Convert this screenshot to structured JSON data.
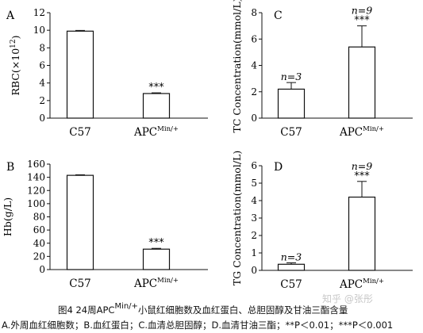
{
  "caption": {
    "line1_prefix": "图4  24周APC",
    "line1_sup": "Min/+",
    "line1_suffix": "小鼠红细胞数及血红蛋白、总胆固醇及甘油三酯含量",
    "line2": "A.外周血红细胞数；B.血红蛋白；C.血清总胆固醇；D.血清甘油三酯；**P＜0.01；***P＜0.001"
  },
  "watermark": "知乎 @张彤",
  "chart_data": [
    {
      "panel": "A",
      "type": "bar",
      "ylabel": "RBC(×10",
      "ylabel_sup": "12",
      "ylabel_suffix": ")",
      "ylim": [
        0,
        12
      ],
      "yticks": [
        0,
        2,
        4,
        6,
        8,
        10,
        12
      ],
      "categories": [
        "C57",
        "APC"
      ],
      "category_sups": [
        "",
        "Min/+"
      ],
      "values": [
        9.9,
        2.8
      ],
      "errors": [
        0.08,
        0.08
      ],
      "annotations": [
        "",
        "***"
      ]
    },
    {
      "panel": "B",
      "type": "bar",
      "ylabel": "Hb(g/L)",
      "ylim": [
        0,
        160
      ],
      "yticks": [
        0,
        20,
        40,
        60,
        80,
        100,
        120,
        140,
        160
      ],
      "categories": [
        "C57",
        "APC"
      ],
      "category_sups": [
        "",
        "Min/+"
      ],
      "values": [
        143,
        31
      ],
      "errors": [
        0.8,
        1.2
      ],
      "annotations": [
        "",
        "***"
      ]
    },
    {
      "panel": "C",
      "type": "bar",
      "ylabel": "TC Concentration(mmol/L)",
      "ylim": [
        0,
        8
      ],
      "yticks": [
        0,
        2,
        4,
        6,
        8
      ],
      "categories": [
        "C57",
        "APC"
      ],
      "category_sups": [
        "",
        "Min/+"
      ],
      "values": [
        2.2,
        5.4
      ],
      "errors": [
        0.5,
        1.6
      ],
      "n_labels": [
        "n=3",
        "n=9"
      ],
      "annotations": [
        "",
        "***"
      ]
    },
    {
      "panel": "D",
      "type": "bar",
      "ylabel": "TG Concentration(mmol/L)",
      "ylim": [
        0,
        6
      ],
      "yticks": [
        0,
        1,
        2,
        3,
        4,
        5,
        6
      ],
      "categories": [
        "C57",
        "APC"
      ],
      "category_sups": [
        "",
        "Min/+"
      ],
      "values": [
        0.35,
        4.2
      ],
      "errors": [
        0.08,
        0.9
      ],
      "n_labels": [
        "n=3",
        "n=9"
      ],
      "annotations": [
        "",
        "***"
      ]
    }
  ]
}
